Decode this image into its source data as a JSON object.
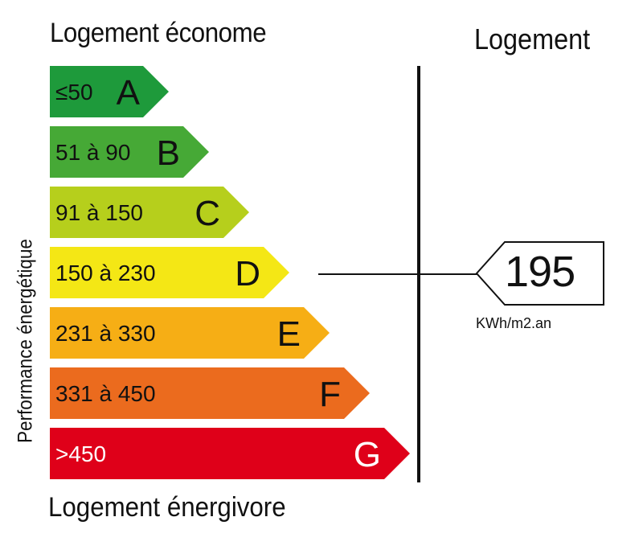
{
  "labels": {
    "top": "Logement économe",
    "bottom": "Logement énergivore",
    "right_title": "Logement",
    "vertical": "Performance énergétique"
  },
  "classes": [
    {
      "range": "≤50",
      "letter": "A",
      "color": "#1e9a3b",
      "range_color": "#111111",
      "letter_color": "#111111"
    },
    {
      "range": "51 à 90",
      "letter": "B",
      "color": "#46a936",
      "range_color": "#111111",
      "letter_color": "#111111"
    },
    {
      "range": "91 à 150",
      "letter": "C",
      "color": "#b6cf1c",
      "range_color": "#111111",
      "letter_color": "#111111"
    },
    {
      "range": "150 à 230",
      "letter": "D",
      "color": "#f4e715",
      "range_color": "#111111",
      "letter_color": "#111111"
    },
    {
      "range": "231 à 330",
      "letter": "E",
      "color": "#f6ae15",
      "range_color": "#111111",
      "letter_color": "#111111"
    },
    {
      "range": "331 à 450",
      "letter": "F",
      "color": "#eb6b1e",
      "range_color": "#111111",
      "letter_color": "#111111"
    },
    {
      "range": ">450",
      "letter": "G",
      "color": "#df0019",
      "range_color": "#ffffff",
      "letter_color": "#ffffff"
    }
  ],
  "current": {
    "value": "195",
    "unit": "KWh/m2.an",
    "class_index": 3
  }
}
